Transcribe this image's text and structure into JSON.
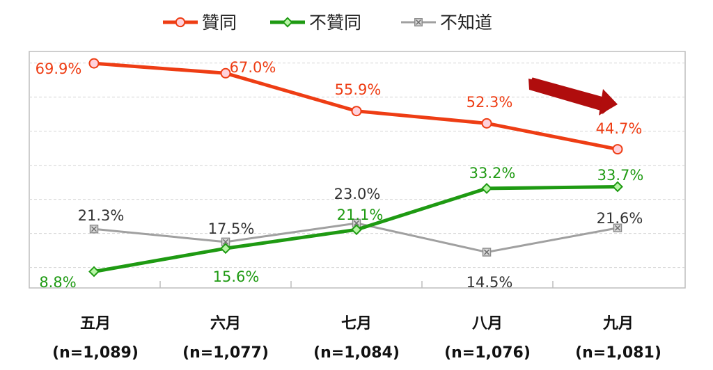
{
  "chart_data": {
    "type": "line",
    "categories": [
      "五月",
      "六月",
      "七月",
      "八月",
      "九月"
    ],
    "sample_sizes": [
      "(n=1,089)",
      "(n=1,077)",
      "(n=1,084)",
      "(n=1,076)",
      "(n=1,081)"
    ],
    "ylim": [
      0,
      80
    ],
    "grid": true,
    "legend_position": "top-center",
    "series": [
      {
        "name": "贊同",
        "values": [
          69.9,
          67.0,
          55.9,
          52.3,
          44.7
        ],
        "labels": [
          "69.9%",
          "67.0%",
          "55.9%",
          "52.3%",
          "44.7%"
        ],
        "color": "#ee3d14",
        "marker": "circle"
      },
      {
        "name": "不贊同",
        "values": [
          8.8,
          15.6,
          21.1,
          33.2,
          33.7
        ],
        "labels": [
          "8.8%",
          "15.6%",
          "21.1%",
          "33.2%",
          "33.7%"
        ],
        "color": "#1e9a12",
        "marker": "diamond"
      },
      {
        "name": "不知道",
        "values": [
          21.3,
          17.5,
          23.0,
          14.5,
          21.6
        ],
        "labels": [
          "21.3%",
          "17.5%",
          "23.0%",
          "14.5%",
          "21.6%"
        ],
        "color": "#a0a0a0",
        "marker": "x-square"
      }
    ],
    "annotations": [
      {
        "type": "trend-arrow",
        "direction": "down",
        "color": "#b00d0d"
      }
    ]
  }
}
